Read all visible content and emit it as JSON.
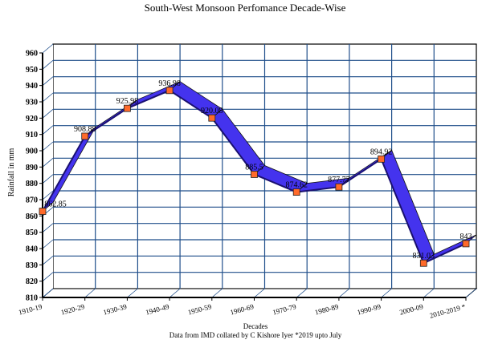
{
  "chart_data": {
    "type": "line",
    "title": "South-West Monsoon Perfomance Decade-Wise",
    "xlabel": "Decades",
    "ylabel": "Rainfall in mm",
    "footnote": "Data from IMD collated by C Kishore Iyer *2019 upto July",
    "categories": [
      "1910-19",
      "1920-29",
      "1930-39",
      "1940-49",
      "1950-59",
      "1960-69",
      "1970-79",
      "1980-89",
      "1990-99",
      "2000-09",
      "2010-2019 *"
    ],
    "values": [
      862.85,
      908.88,
      925.98,
      936.98,
      920.08,
      885.5,
      874.62,
      877.77,
      894.92,
      831.03,
      843
    ],
    "data_labels": [
      "862.85",
      "908.88",
      "925.98",
      "936.98",
      "920.08",
      "885.5",
      "874.62",
      "877.77",
      "894.92",
      "831.03",
      "843"
    ],
    "ylim": [
      810,
      960
    ],
    "yticks": [
      810,
      820,
      830,
      840,
      850,
      860,
      870,
      880,
      890,
      900,
      910,
      920,
      930,
      940,
      950,
      960
    ],
    "grid": true,
    "style": "3d-ribbon",
    "colors": {
      "ribbon": "#4433ee",
      "marker": "#ff6a2a",
      "grid": "#1f4e8a"
    }
  }
}
